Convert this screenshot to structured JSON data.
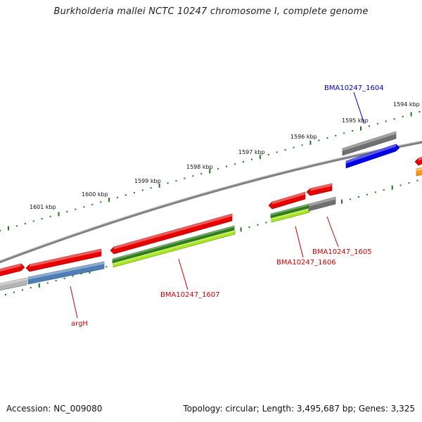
{
  "title": "Burkholderia mallei NCTC 10247 chromosome I, complete genome",
  "accession_text": "Accession: NC_009080",
  "summary_text": "Topology: circular; Length: 3,495,687 bp; Genes: 3,325",
  "colors": {
    "backbone": "#808080",
    "tick": "#1a7a1a",
    "red_feature": "#e60000",
    "dark_green_feature": "#2e7d1e",
    "light_green_feature": "#a6e61e",
    "steel_blue_feature": "#4d7eb5",
    "blue_feature": "#0000e6",
    "grey_feature": "#707070",
    "light_grey_feature": "#b4b4b4",
    "orange_feature": "#ff9900",
    "blue_label": "#0000cc",
    "red_label": "#cc0000"
  },
  "scale_labels": [
    "1594 kbp",
    "1595 kbp",
    "1596 kbp",
    "1597 kbp",
    "1598 kbp",
    "1599 kbp",
    "1600 kbp",
    "1601 kbp"
  ],
  "gene_labels": [
    "BMA10247_1604",
    "BMA10247_1605",
    "BMA10247_1606",
    "BMA10247_1607",
    "argH"
  ]
}
